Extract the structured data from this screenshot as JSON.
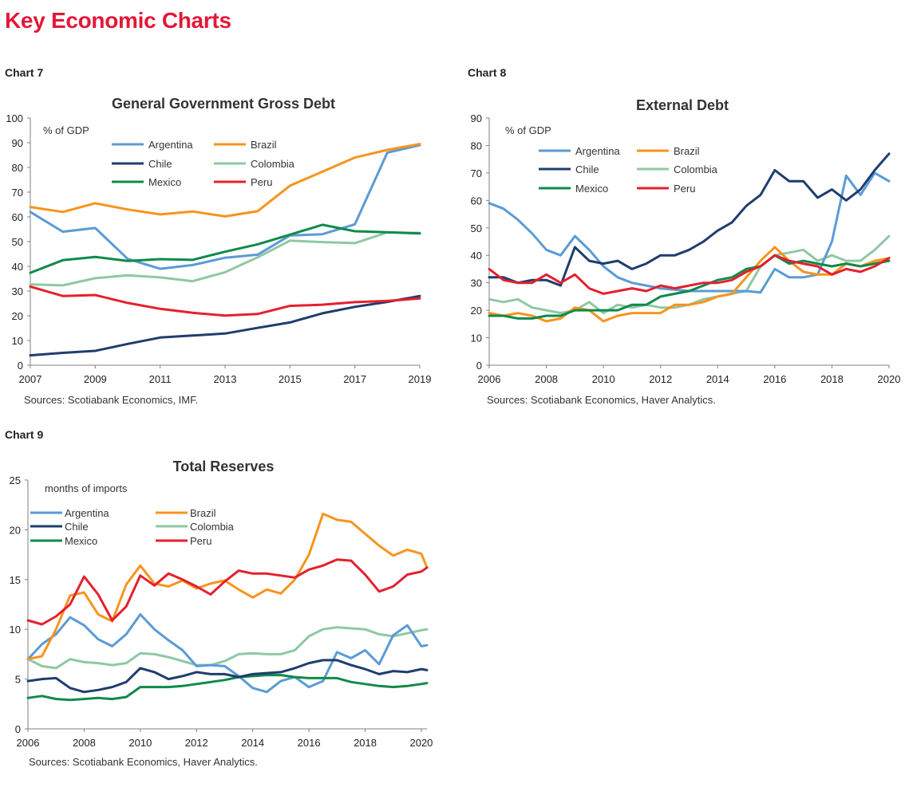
{
  "page": {
    "title": "Key Economic Charts"
  },
  "colors": {
    "Argentina": "#5b9bd5",
    "Brazil": "#f7941d",
    "Chile": "#1f3d6e",
    "Colombia": "#8fc8a4",
    "Mexico": "#0f8a4a",
    "Peru": "#e4202e",
    "title_red": "#e31837"
  },
  "charts": [
    {
      "label": "Chart 7",
      "title": "General Government Gross Debt",
      "source": "Sources: Scotiabank Economics, IMF.",
      "unit": "% of GDP"
    },
    {
      "label": "Chart 8",
      "title": "External Debt",
      "source": "Sources: Scotiabank Economics, Haver Analytics.",
      "unit": "% of GDP"
    },
    {
      "label": "Chart 9",
      "title": "Total Reserves",
      "source": "Sources: Scotiabank Economics, Haver Analytics.",
      "unit": "months of imports"
    }
  ],
  "chart_data": [
    {
      "type": "line",
      "title": "General Government Gross Debt",
      "ylabel": "% of GDP",
      "xlim": [
        2007,
        2019
      ],
      "ylim": [
        0,
        100
      ],
      "xticks": [
        "2007",
        "2009",
        "2011",
        "2013",
        "2015",
        "2017",
        "2019"
      ],
      "yticks": [
        "0",
        "10",
        "20",
        "30",
        "40",
        "50",
        "60",
        "70",
        "80",
        "90",
        "100"
      ],
      "x": [
        2007,
        2008,
        2009,
        2010,
        2011,
        2012,
        2013,
        2014,
        2015,
        2016,
        2017,
        2018,
        2019
      ],
      "legend": "top, 2 columns",
      "grid": false,
      "series": [
        {
          "name": "Argentina",
          "values": [
            62,
            54,
            55.5,
            43,
            39,
            40.5,
            43.5,
            44.7,
            52.5,
            53,
            57,
            86,
            89
          ]
        },
        {
          "name": "Brazil",
          "values": [
            64,
            62,
            65.5,
            63,
            61,
            62.2,
            60.2,
            62.3,
            72.6,
            78.3,
            84,
            87.1,
            89.5
          ]
        },
        {
          "name": "Chile",
          "values": [
            4,
            5,
            5.8,
            8.6,
            11.2,
            12,
            12.8,
            15.1,
            17.3,
            21,
            23.6,
            25.6,
            28
          ]
        },
        {
          "name": "Colombia",
          "values": [
            32.7,
            32.3,
            35.2,
            36.4,
            35.5,
            34,
            37.6,
            43.6,
            50.4,
            49.8,
            49.4,
            53.7,
            53.5
          ]
        },
        {
          "name": "Mexico",
          "values": [
            37.4,
            42.5,
            43.8,
            42.2,
            42.9,
            42.6,
            45.9,
            48.9,
            52.8,
            56.8,
            54.2,
            53.8,
            53.3
          ]
        },
        {
          "name": "Peru",
          "values": [
            31.8,
            28,
            28.4,
            25.2,
            22.8,
            21.2,
            20.1,
            20.7,
            24,
            24.5,
            25.5,
            26,
            27
          ]
        }
      ]
    },
    {
      "type": "line",
      "title": "External Debt",
      "ylabel": "% of GDP",
      "xlim": [
        2006,
        2020
      ],
      "ylim": [
        0,
        90
      ],
      "xticks": [
        "2006",
        "2008",
        "2010",
        "2012",
        "2014",
        "2016",
        "2018",
        "2020"
      ],
      "yticks": [
        "0",
        "10",
        "20",
        "30",
        "40",
        "50",
        "60",
        "70",
        "80",
        "90"
      ],
      "x": [
        2006,
        2006.5,
        2007,
        2007.5,
        2008,
        2008.5,
        2009,
        2009.5,
        2010,
        2010.5,
        2011,
        2011.5,
        2012,
        2012.5,
        2013,
        2013.5,
        2014,
        2014.5,
        2015,
        2015.5,
        2016,
        2016.5,
        2017,
        2017.5,
        2018,
        2018.5,
        2019,
        2019.5,
        2020
      ],
      "legend": "top, 2 columns",
      "grid": false,
      "series": [
        {
          "name": "Argentina",
          "values": [
            59,
            57,
            53,
            48,
            42,
            40,
            47,
            42,
            36,
            32,
            30,
            29,
            28,
            27.5,
            27,
            27,
            27,
            27,
            27,
            26.5,
            35,
            32,
            32,
            33,
            45,
            69,
            62,
            70,
            67
          ]
        },
        {
          "name": "Brazil",
          "values": [
            19,
            18,
            19,
            18,
            16,
            17,
            21,
            20,
            16,
            18,
            19,
            19,
            19,
            22,
            22,
            23,
            25,
            26,
            32,
            38,
            43,
            38,
            34,
            33,
            33,
            37,
            36,
            38,
            39
          ]
        },
        {
          "name": "Chile",
          "values": [
            32,
            32,
            30,
            31,
            31,
            29,
            43,
            38,
            37,
            38,
            35,
            37,
            40,
            40,
            42,
            45,
            49,
            52,
            58,
            62,
            71,
            67,
            67,
            61,
            64,
            60,
            64,
            71,
            77
          ]
        },
        {
          "name": "Colombia",
          "values": [
            24,
            23,
            24,
            21,
            20,
            19,
            20,
            23,
            19,
            22,
            21,
            22,
            21,
            21,
            22,
            24,
            25,
            26,
            27,
            36,
            40,
            41,
            42,
            38,
            40,
            38,
            38,
            42,
            47
          ]
        },
        {
          "name": "Mexico",
          "values": [
            18,
            18,
            17,
            17,
            18,
            18,
            20,
            20,
            20,
            20,
            22,
            22,
            25,
            26,
            27,
            29,
            31,
            32,
            35,
            36,
            40,
            37,
            38,
            37,
            36,
            37,
            36,
            37,
            38
          ]
        },
        {
          "name": "Peru",
          "values": [
            35,
            31,
            30,
            30,
            33,
            30,
            33,
            28,
            26,
            27,
            28,
            27,
            29,
            28,
            29,
            30,
            30,
            31,
            34,
            36,
            40,
            38,
            37,
            36,
            33,
            35,
            34,
            36,
            39
          ]
        }
      ]
    },
    {
      "type": "line",
      "title": "Total Reserves",
      "ylabel": "months of imports",
      "xlim": [
        2006,
        2020.2
      ],
      "ylim": [
        0,
        25
      ],
      "xticks": [
        "2006",
        "2008",
        "2010",
        "2012",
        "2014",
        "2016",
        "2018",
        "2020"
      ],
      "yticks": [
        "0",
        "5",
        "10",
        "15",
        "20",
        "25"
      ],
      "x": [
        2006,
        2006.5,
        2007,
        2007.5,
        2008,
        2008.5,
        2009,
        2009.5,
        2010,
        2010.5,
        2011,
        2011.5,
        2012,
        2012.5,
        2013,
        2013.5,
        2014,
        2014.5,
        2015,
        2015.5,
        2016,
        2016.5,
        2017,
        2017.5,
        2018,
        2018.5,
        2019,
        2019.5,
        2020,
        2020.2
      ],
      "legend": "top, 2 columns",
      "grid": false,
      "series": [
        {
          "name": "Argentina",
          "values": [
            7,
            8.5,
            9.5,
            11.2,
            10.4,
            9,
            8.3,
            9.5,
            11.5,
            10,
            8.9,
            7.9,
            6.3,
            6.4,
            6.3,
            5.3,
            4.1,
            3.7,
            4.8,
            5.2,
            4.2,
            4.8,
            7.7,
            7.1,
            7.9,
            6.5,
            9.4,
            10.4,
            8.3,
            8.4
          ]
        },
        {
          "name": "Brazil",
          "values": [
            7,
            7.3,
            10,
            13.4,
            13.7,
            11.5,
            10.8,
            14.5,
            16.4,
            14.6,
            14.3,
            14.9,
            14.1,
            14.6,
            14.9,
            14,
            13.2,
            14,
            13.6,
            15,
            17.5,
            21.6,
            21,
            20.8,
            19.6,
            18.4,
            17.4,
            18,
            17.6,
            16.2
          ]
        },
        {
          "name": "Chile",
          "values": [
            4.8,
            5,
            5.1,
            4.1,
            3.7,
            3.9,
            4.2,
            4.7,
            6.1,
            5.7,
            5,
            5.3,
            5.7,
            5.5,
            5.5,
            5.2,
            5.5,
            5.6,
            5.7,
            6.1,
            6.6,
            6.9,
            6.9,
            6.4,
            6,
            5.5,
            5.8,
            5.7,
            6,
            5.9
          ]
        },
        {
          "name": "Colombia",
          "values": [
            7,
            6.3,
            6.1,
            7,
            6.7,
            6.6,
            6.4,
            6.6,
            7.6,
            7.5,
            7.2,
            6.8,
            6.4,
            6.4,
            6.8,
            7.5,
            7.6,
            7.5,
            7.5,
            7.9,
            9.3,
            10,
            10.2,
            10.1,
            10,
            9.5,
            9.3,
            9.6,
            9.9,
            10
          ]
        },
        {
          "name": "Mexico",
          "values": [
            3.1,
            3.3,
            3,
            2.9,
            3,
            3.1,
            3,
            3.2,
            4.2,
            4.2,
            4.2,
            4.3,
            4.5,
            4.7,
            4.9,
            5.2,
            5.3,
            5.4,
            5.4,
            5.2,
            5.1,
            5.1,
            5.1,
            4.7,
            4.5,
            4.3,
            4.2,
            4.3,
            4.5,
            4.6
          ]
        },
        {
          "name": "Peru",
          "values": [
            10.9,
            10.5,
            11.3,
            12.5,
            15.3,
            13.5,
            10.9,
            12.3,
            15.4,
            14.4,
            15.6,
            15,
            14.3,
            13.5,
            14.8,
            15.9,
            15.6,
            15.6,
            15.4,
            15.2,
            16,
            16.4,
            17,
            16.9,
            15.5,
            13.8,
            14.3,
            15.5,
            15.8,
            16.2
          ]
        }
      ]
    }
  ]
}
